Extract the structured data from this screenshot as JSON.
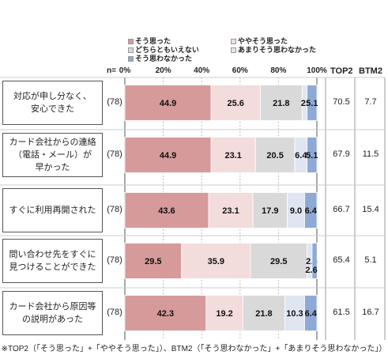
{
  "chart_data": {
    "type": "bar",
    "orientation": "horizontal-stacked-100",
    "n_label": "n=",
    "x_ticks": [
      "0%",
      "20%",
      "40%",
      "60%",
      "80%",
      "100%"
    ],
    "legend": [
      {
        "name": "そう思った",
        "color": "#d69a9a"
      },
      {
        "name": "ややそう思った",
        "color": "#f3dcdc"
      },
      {
        "name": "どちらともいえない",
        "color": "#d9d9d9"
      },
      {
        "name": "あまりそう思わなかった",
        "color": "#dfe6f2"
      },
      {
        "name": "そう思わなかった",
        "color": "#8fa9d6"
      }
    ],
    "top2_header": "TOP2",
    "btm2_header": "BTM2",
    "categories": [
      {
        "label": "対応が申し分なく、\n安心できた",
        "n": "(78)",
        "values": [
          44.9,
          25.6,
          21.8,
          2.6,
          5.1
        ],
        "labels": [
          "44.9",
          "25.6",
          "21.8",
          "2.6",
          "5.1"
        ],
        "top2": "70.5",
        "btm2": "7.7"
      },
      {
        "label": "カード会社からの連絡\n（電話・メール）が\n早かった",
        "n": "(78)",
        "values": [
          44.9,
          23.1,
          20.5,
          6.4,
          5.1
        ],
        "labels": [
          "44.9",
          "23.1",
          "20.5",
          "6.4",
          "5.1"
        ],
        "top2": "67.9",
        "btm2": "11.5"
      },
      {
        "label": "すぐに利用再開された",
        "n": "(78)",
        "values": [
          43.6,
          23.1,
          17.9,
          9.0,
          6.4
        ],
        "labels": [
          "43.6",
          "23.1",
          "17.9",
          "9.0",
          "6.4"
        ],
        "top2": "66.7",
        "btm2": "15.4"
      },
      {
        "label": "問い合わせ先をすぐに\n見つけることができた",
        "n": "(78)",
        "values": [
          29.5,
          35.9,
          29.5,
          2.6,
          2.6
        ],
        "labels": [
          "29.5",
          "35.9",
          "29.5",
          "2.6",
          "2.6"
        ],
        "top2": "65.4",
        "btm2": "5.1"
      },
      {
        "label": "カード会社から原因等\nの説明があった",
        "n": "(78)",
        "values": [
          42.3,
          19.2,
          21.8,
          10.3,
          6.4
        ],
        "labels": [
          "42.3",
          "19.2",
          "21.8",
          "10.3",
          "6.4"
        ],
        "top2": "61.5",
        "btm2": "16.7"
      }
    ],
    "note": "※TOP2（「そう思った」+「ややそう思った」）、BTM2（「そう思わなかった」+「あまりそう思わなかった」）"
  }
}
